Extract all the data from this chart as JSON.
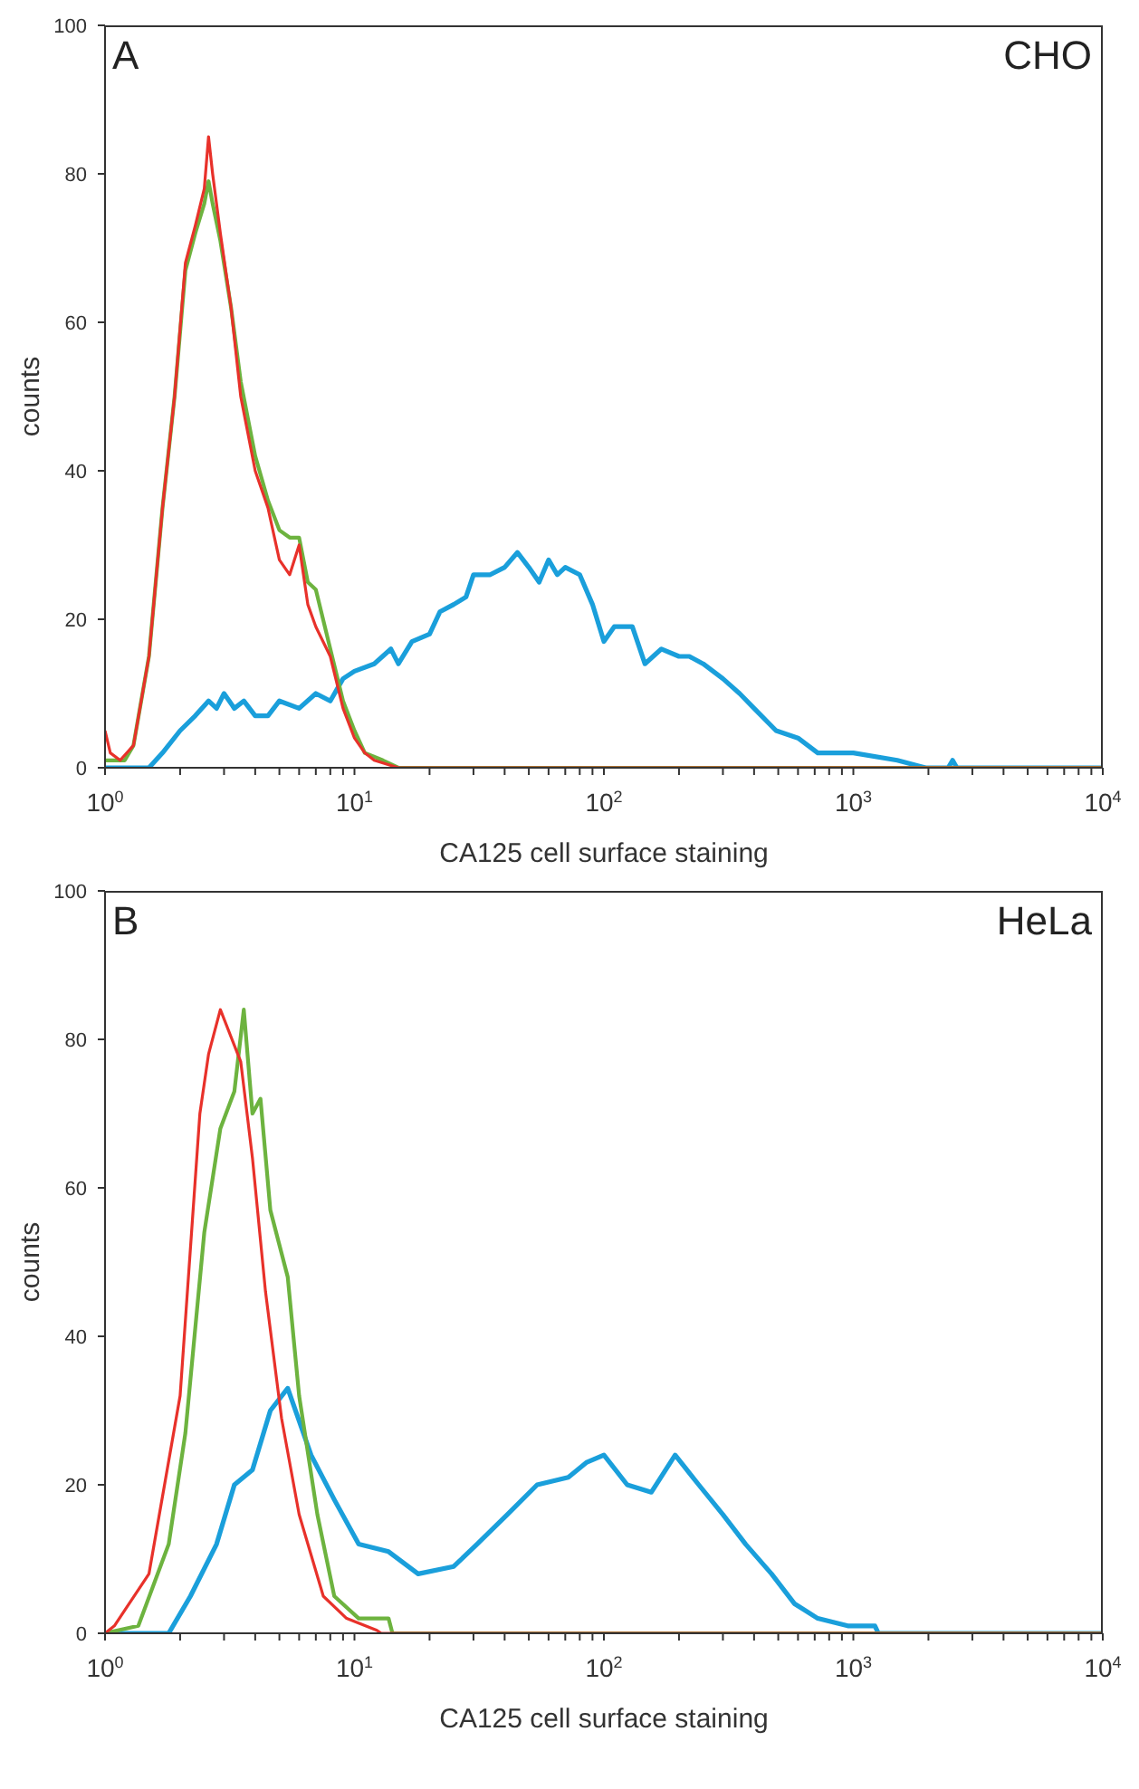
{
  "chart_data": [
    {
      "type": "line",
      "annotations": [
        "A",
        "CHO"
      ],
      "xlabel": "CA125 cell surface staining",
      "ylabel": "counts",
      "log": "x",
      "marker": "none",
      "line_style": "solid",
      "xlim": [
        1,
        10000
      ],
      "ylim": [
        0,
        100
      ],
      "xticks": [
        {
          "value": 1,
          "label": "10$^{0}$"
        },
        {
          "value": 2,
          "label": null
        },
        {
          "value": 3,
          "label": null
        },
        {
          "value": 4,
          "label": null
        },
        {
          "value": 5,
          "label": null
        },
        {
          "value": 6,
          "label": null
        },
        {
          "value": 7,
          "label": null
        },
        {
          "value": 8,
          "label": null
        },
        {
          "value": 9,
          "label": null
        },
        {
          "value": 10,
          "label": "10$^{1}$"
        },
        {
          "value": 20,
          "label": null
        },
        {
          "value": 30,
          "label": null
        },
        {
          "value": 40,
          "label": null
        },
        {
          "value": 50,
          "label": null
        },
        {
          "value": 60,
          "label": null
        },
        {
          "value": 70,
          "label": null
        },
        {
          "value": 80,
          "label": null
        },
        {
          "value": 90,
          "label": null
        },
        {
          "value": 100,
          "label": "10$^{2}$"
        },
        {
          "value": 200,
          "label": null
        },
        {
          "value": 300,
          "label": null
        },
        {
          "value": 400,
          "label": null
        },
        {
          "value": 500,
          "label": null
        },
        {
          "value": 600,
          "label": null
        },
        {
          "value": 700,
          "label": null
        },
        {
          "value": 800,
          "label": null
        },
        {
          "value": 900,
          "label": null
        },
        {
          "value": 1000,
          "label": "10$^{3}$"
        },
        {
          "value": 2000,
          "label": null
        },
        {
          "value": 3000,
          "label": null
        },
        {
          "value": 4000,
          "label": null
        },
        {
          "value": 5000,
          "label": null
        },
        {
          "value": 6000,
          "label": null
        },
        {
          "value": 7000,
          "label": null
        },
        {
          "value": 8000,
          "label": null
        },
        {
          "value": 9000,
          "label": null
        },
        {
          "value": 10000,
          "label": "10$^{4}$"
        }
      ],
      "yticks": [
        0,
        20,
        40,
        60,
        80,
        100
      ],
      "series": [
        {
          "color": "#1a9fdb",
          "x": [
            1,
            1.5,
            1.7,
            2,
            2.3,
            2.6,
            2.8,
            3,
            3.3,
            3.6,
            4,
            4.5,
            5,
            6,
            7,
            8,
            9,
            10,
            12,
            14,
            15,
            17,
            20,
            22,
            25,
            28,
            30,
            35,
            40,
            45,
            50,
            55,
            60,
            65,
            70,
            80,
            90,
            100,
            110,
            130,
            146,
            170,
            200,
            220,
            250,
            300,
            350,
            400,
            490,
            600,
            720,
            850,
            1000,
            1500,
            1950,
            2400,
            2500,
            2600,
            10000
          ],
          "values": [
            0,
            0,
            2,
            5,
            7,
            9,
            8,
            10,
            8,
            9,
            7,
            7,
            9,
            8,
            10,
            9,
            12,
            13,
            14,
            16,
            14,
            17,
            18,
            21,
            22,
            23,
            26,
            26,
            27,
            29,
            27,
            25,
            28,
            26,
            27,
            26,
            22,
            17,
            19,
            19,
            14,
            16,
            15,
            15,
            14,
            12,
            10,
            8,
            5,
            4,
            2,
            2,
            2,
            1,
            0,
            0,
            1,
            0,
            0
          ]
        },
        {
          "color": "#6db33f",
          "x": [
            1,
            1.2,
            1.3,
            1.5,
            1.7,
            1.9,
            2.1,
            2.3,
            2.5,
            2.6,
            2.7,
            2.9,
            3.2,
            3.5,
            4,
            4.5,
            5,
            5.5,
            6,
            6.5,
            7,
            8,
            9,
            10,
            11,
            13,
            15,
            10000
          ],
          "values": [
            1,
            1,
            3,
            15,
            35,
            50,
            67,
            72,
            76,
            79,
            76,
            71,
            62,
            52,
            42,
            36,
            32,
            31,
            31,
            25,
            24,
            16,
            9,
            5,
            2,
            1,
            0,
            0
          ]
        },
        {
          "color": "#e8312a",
          "x": [
            1,
            1.05,
            1.15,
            1.3,
            1.5,
            1.7,
            1.9,
            2.1,
            2.3,
            2.5,
            2.6,
            2.7,
            2.9,
            3.2,
            3.5,
            4,
            4.5,
            5,
            5.5,
            6,
            6.5,
            7,
            8,
            9,
            10,
            11,
            12,
            15,
            10000
          ],
          "values": [
            5,
            2,
            1,
            3,
            15,
            35,
            50,
            68,
            73,
            78,
            85,
            80,
            72,
            62,
            50,
            40,
            35,
            28,
            26,
            30,
            22,
            19,
            15,
            8,
            4,
            2,
            1,
            0,
            0
          ]
        }
      ]
    },
    {
      "type": "line",
      "annotations": [
        "B",
        "HeLa"
      ],
      "xlabel": "CA125 cell surface staining",
      "ylabel": "counts",
      "log": "x",
      "marker": "none",
      "line_style": "solid",
      "xlim": [
        1,
        10000
      ],
      "ylim": [
        0,
        100
      ],
      "xticks": [
        {
          "value": 1,
          "label": "10$^{0}$"
        },
        {
          "value": 2,
          "label": null
        },
        {
          "value": 3,
          "label": null
        },
        {
          "value": 4,
          "label": null
        },
        {
          "value": 5,
          "label": null
        },
        {
          "value": 6,
          "label": null
        },
        {
          "value": 7,
          "label": null
        },
        {
          "value": 8,
          "label": null
        },
        {
          "value": 9,
          "label": null
        },
        {
          "value": 10,
          "label": "10$^{1}$"
        },
        {
          "value": 20,
          "label": null
        },
        {
          "value": 30,
          "label": null
        },
        {
          "value": 40,
          "label": null
        },
        {
          "value": 50,
          "label": null
        },
        {
          "value": 60,
          "label": null
        },
        {
          "value": 70,
          "label": null
        },
        {
          "value": 80,
          "label": null
        },
        {
          "value": 90,
          "label": null
        },
        {
          "value": 100,
          "label": "10$^{2}$"
        },
        {
          "value": 200,
          "label": null
        },
        {
          "value": 300,
          "label": null
        },
        {
          "value": 400,
          "label": null
        },
        {
          "value": 500,
          "label": null
        },
        {
          "value": 600,
          "label": null
        },
        {
          "value": 700,
          "label": null
        },
        {
          "value": 800,
          "label": null
        },
        {
          "value": 900,
          "label": null
        },
        {
          "value": 1000,
          "label": "10$^{3}$"
        },
        {
          "value": 2000,
          "label": null
        },
        {
          "value": 3000,
          "label": null
        },
        {
          "value": 4000,
          "label": null
        },
        {
          "value": 5000,
          "label": null
        },
        {
          "value": 6000,
          "label": null
        },
        {
          "value": 7000,
          "label": null
        },
        {
          "value": 8000,
          "label": null
        },
        {
          "value": 9000,
          "label": null
        },
        {
          "value": 10000,
          "label": "10$^{4}$"
        }
      ],
      "yticks": [
        0,
        20,
        40,
        60,
        80,
        100
      ],
      "series": [
        {
          "color": "#1a9fdb",
          "x": [
            1,
            1.8,
            2.2,
            2.8,
            3.3,
            3.9,
            4.6,
            5.4,
            6.7,
            8.3,
            10.4,
            13.7,
            18,
            25,
            31,
            41,
            54,
            72,
            85,
            100,
            124,
            155,
            193,
            240,
            300,
            370,
            470,
            580,
            720,
            950,
            1220,
            1260,
            10000
          ],
          "values": [
            0,
            0,
            5,
            12,
            20,
            22,
            30,
            33,
            24,
            18,
            12,
            11,
            8,
            9,
            12,
            16,
            20,
            21,
            23,
            24,
            20,
            19,
            24,
            20,
            16,
            12,
            8,
            4,
            2,
            1,
            1,
            0,
            0
          ]
        },
        {
          "color": "#6db33f",
          "x": [
            1,
            1.36,
            1.8,
            2.1,
            2.5,
            2.9,
            3.3,
            3.6,
            3.9,
            4.2,
            4.6,
            5.4,
            6,
            7.1,
            8.3,
            10.4,
            13.7,
            14.2,
            10000
          ],
          "values": [
            0,
            1,
            12,
            27,
            54,
            68,
            73,
            84,
            70,
            72,
            57,
            48,
            32,
            16,
            5,
            2,
            2,
            0,
            0
          ]
        },
        {
          "color": "#e8312a",
          "x": [
            1,
            1.09,
            1.5,
            2,
            2.4,
            2.6,
            2.9,
            3.5,
            3.9,
            4.4,
            5.1,
            6,
            7.5,
            9.3,
            12.3,
            12.8,
            10000
          ],
          "values": [
            0,
            1,
            8,
            32,
            70,
            78,
            84,
            77,
            64,
            46,
            29,
            16,
            5,
            2,
            0.4,
            0,
            0
          ]
        }
      ]
    }
  ]
}
